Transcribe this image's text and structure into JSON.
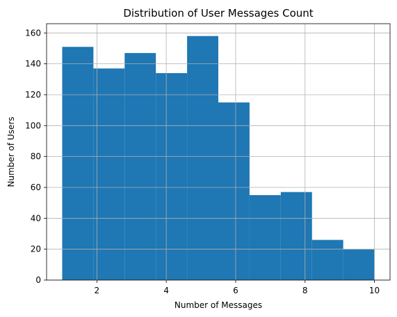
{
  "chart_data": {
    "type": "bar",
    "title": "Distribution of User Messages Count",
    "xlabel": "Number of Messages",
    "ylabel": "Number of Users",
    "xlim": [
      0.55,
      10.45
    ],
    "ylim": [
      0,
      166
    ],
    "bins": [
      {
        "x0": 1.0,
        "x1": 1.9,
        "value": 151
      },
      {
        "x0": 1.9,
        "x1": 2.8,
        "value": 137
      },
      {
        "x0": 2.8,
        "x1": 3.7,
        "value": 147
      },
      {
        "x0": 3.7,
        "x1": 4.6,
        "value": 134
      },
      {
        "x0": 4.6,
        "x1": 5.5,
        "value": 158
      },
      {
        "x0": 5.5,
        "x1": 6.4,
        "value": 115
      },
      {
        "x0": 6.4,
        "x1": 7.3,
        "value": 55
      },
      {
        "x0": 7.3,
        "x1": 8.2,
        "value": 57
      },
      {
        "x0": 8.2,
        "x1": 9.1,
        "value": 26
      },
      {
        "x0": 9.1,
        "x1": 10.0,
        "value": 20
      }
    ],
    "x_ticks": [
      2,
      4,
      6,
      8,
      10
    ],
    "y_ticks": [
      0,
      20,
      40,
      60,
      80,
      100,
      120,
      140,
      160
    ],
    "grid": true,
    "colors": {
      "bar": "#1f77b4",
      "grid": "#b0b0b0",
      "axis": "#000000"
    }
  }
}
